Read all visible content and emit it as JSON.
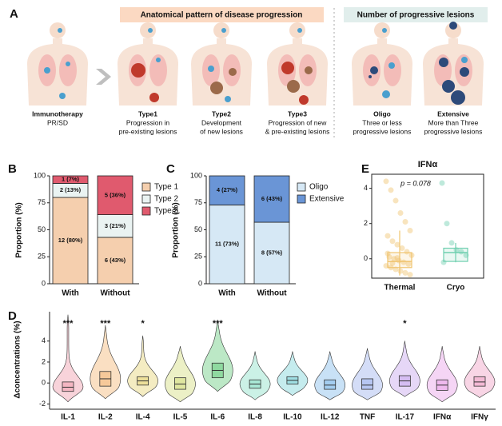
{
  "panel_labels": [
    "A",
    "B",
    "C",
    "D",
    "E"
  ],
  "panel_a": {
    "headers": [
      "Anatomical pattern of disease progression",
      "Number of progressive lesions"
    ],
    "figures": [
      {
        "lines": [
          "Immunotherapy",
          "PR/SD"
        ]
      },
      {
        "lines": [
          "Type1",
          "Progression in",
          "pre-existing lesions"
        ]
      },
      {
        "lines": [
          "Type2",
          "Development",
          "of new lesions"
        ]
      },
      {
        "lines": [
          "Type3",
          "Progression of new",
          "& pre-existing lesions"
        ]
      },
      {
        "lines": [
          "Oligo",
          "Three or less",
          "progressive lesions"
        ]
      },
      {
        "lines": [
          "Extensive",
          "More than Three",
          "progressive lesions"
        ]
      }
    ]
  },
  "chart_data": [
    {
      "type": "stacked_bar",
      "ylabel": "Proportion (%)",
      "categories": [
        "With",
        "Without"
      ],
      "ylim": [
        0,
        100
      ],
      "yticks": [
        0,
        25,
        50,
        75,
        100
      ],
      "series": [
        {
          "name": "Type 1",
          "color": "#f5cfae",
          "values": [
            80,
            43
          ],
          "value_labels": [
            "12 (80%)",
            "6 (43%)"
          ]
        },
        {
          "name": "Type 2",
          "color": "#eaf3f2",
          "values": [
            13,
            21
          ],
          "value_labels": [
            "2 (13%)",
            "3 (21%)"
          ]
        },
        {
          "name": "Type 3",
          "color": "#e05a6e",
          "values": [
            7,
            36
          ],
          "value_labels": [
            "1 (7%)",
            "5 (36%)"
          ]
        }
      ]
    },
    {
      "type": "stacked_bar",
      "ylabel": "Proportion (%)",
      "categories": [
        "With",
        "Without"
      ],
      "ylim": [
        0,
        100
      ],
      "yticks": [
        0,
        25,
        50,
        75,
        100
      ],
      "series": [
        {
          "name": "Oligo",
          "color": "#d6e8f5",
          "values": [
            73,
            57
          ],
          "value_labels": [
            "11 (73%)",
            "8 (57%)"
          ]
        },
        {
          "name": "Extensive",
          "color": "#6a95d6",
          "values": [
            27,
            43
          ],
          "value_labels": [
            "4 (27%)",
            "6 (43%)"
          ]
        }
      ]
    },
    {
      "type": "box",
      "title": "IFNα",
      "annotation": "p = 0.078",
      "categories": [
        "Thermal",
        "Cryo"
      ],
      "colors": [
        "#f0c46e",
        "#6fcfb0"
      ],
      "ylim": [
        -1.1,
        4.8
      ],
      "yticks": [
        0,
        2,
        4
      ],
      "boxes": [
        {
          "whisker_low": -0.95,
          "q1": -0.5,
          "median": -0.15,
          "q3": 0.35,
          "whisker_high": 1.6
        },
        {
          "whisker_low": -0.2,
          "q1": -0.15,
          "median": 0.35,
          "q3": 0.6,
          "whisker_high": 0.9
        }
      ],
      "points": [
        [
          4.4,
          3.9,
          3.3,
          2.6,
          2.1,
          1.6,
          1.3,
          1.0,
          0.8,
          0.6,
          0.4,
          0.2,
          0.1,
          0,
          -0.1,
          -0.2,
          -0.3,
          -0.4,
          -0.5,
          -0.6,
          -0.7,
          -0.8,
          -0.9,
          0.3,
          -0.25,
          0.05
        ],
        [
          4.3,
          2.0,
          0.9,
          0.5,
          0.4,
          0.2,
          -0.2
        ]
      ]
    },
    {
      "type": "violin",
      "ylabel": "Δconcentrations (%)",
      "categories": [
        "IL-1",
        "IL-2",
        "IL-4",
        "IL-5",
        "IL-6",
        "IL-8",
        "IL-10",
        "IL-12",
        "TNF",
        "IL-17",
        "IFNα",
        "IFNγ"
      ],
      "colors": [
        "#f4b6c2",
        "#f6c99a",
        "#ecdf9a",
        "#dfe6a0",
        "#8fd9a0",
        "#a9e8d6",
        "#9fdfe3",
        "#a3cdf0",
        "#b7c6f2",
        "#d5bdf2",
        "#efb9ee",
        "#f3b9d4"
      ],
      "ylim": [
        -2.5,
        6.8
      ],
      "yticks": [
        -2,
        0,
        2,
        4
      ],
      "min": [
        -1.8,
        -1.5,
        -1.3,
        -1.8,
        -0.8,
        -1.6,
        -1.2,
        -1.6,
        -1.6,
        -1.3,
        -1.8,
        -1.4
      ],
      "max": [
        6.5,
        5.5,
        4.5,
        3.5,
        6.0,
        3.0,
        3.0,
        3.0,
        3.3,
        4.0,
        3.5,
        3.5
      ],
      "q1": [
        -0.8,
        -0.3,
        -0.2,
        -0.6,
        0.5,
        -0.5,
        -0.1,
        -0.6,
        -0.6,
        -0.3,
        -0.7,
        -0.3
      ],
      "median": [
        -0.4,
        0.4,
        0.2,
        -0.1,
        1.2,
        -0.1,
        0.25,
        -0.2,
        -0.2,
        0.2,
        -0.2,
        0.1
      ],
      "q3": [
        0.1,
        1.1,
        0.6,
        0.5,
        1.9,
        0.3,
        0.6,
        0.3,
        0.4,
        0.7,
        0.3,
        0.6
      ],
      "significance": [
        "***",
        "***",
        "*",
        null,
        "***",
        null,
        null,
        null,
        null,
        "*",
        null,
        null
      ]
    }
  ]
}
